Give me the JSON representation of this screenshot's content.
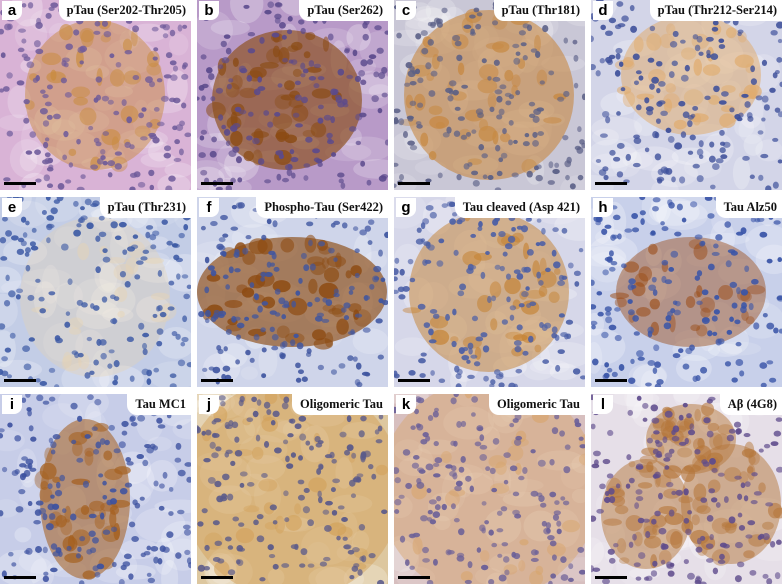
{
  "panels": [
    {
      "letter": "a",
      "title": "pTau (Ser202-Thr205)",
      "bg": "#d9b3d6",
      "cell": "#6e5a9a",
      "stain": "#c98a3a",
      "stainLevel": 0.5,
      "pattern": "islet-center"
    },
    {
      "letter": "b",
      "title": "pTau (Ser262)",
      "bg": "#b89ac8",
      "cell": "#5b4a8c",
      "stain": "#8a4a12",
      "stainLevel": 0.85,
      "pattern": "islet-ring"
    },
    {
      "letter": "c",
      "title": "pTau (Thr181)",
      "bg": "#c9c7d6",
      "cell": "#5a5f86",
      "stain": "#c78a45",
      "stainLevel": 0.8,
      "pattern": "islet-large"
    },
    {
      "letter": "d",
      "title": "pTau (Thr212-Ser214)",
      "bg": "#d3d5e8",
      "cell": "#3d4f9a",
      "stain": "#e0ab6c",
      "stainLevel": 0.6,
      "pattern": "islet-top"
    },
    {
      "letter": "e",
      "title": "pTau (Thr231)",
      "bg": "#c3cde6",
      "cell": "#3d5aa5",
      "stain": "#e8d3b0",
      "stainLevel": 0.2,
      "pattern": "islet-faint"
    },
    {
      "letter": "f",
      "title": "Phospho-Tau (Ser422)",
      "bg": "#cfd5ea",
      "cell": "#3f55a0",
      "stain": "#8d4b12",
      "stainLevel": 0.9,
      "pattern": "islet-band"
    },
    {
      "letter": "g",
      "title": "Tau cleaved (Asp 421)",
      "bg": "#d6d7e9",
      "cell": "#4a5ea6",
      "stain": "#c4802f",
      "stainLevel": 0.55,
      "pattern": "islet-scatter"
    },
    {
      "letter": "h",
      "title": "Tau Alz50",
      "bg": "#c8d0ea",
      "cell": "#3a55a8",
      "stain": "#9a4a14",
      "stainLevel": 0.45,
      "pattern": "islet-spots"
    },
    {
      "letter": "i",
      "title": "Tau MC1",
      "bg": "#c7cde8",
      "cell": "#3d52a0",
      "stain": "#a5601f",
      "stainLevel": 0.7,
      "pattern": "islet-diag"
    },
    {
      "letter": "j",
      "title": "Oligomeric Tau",
      "bg": "#ddc79f",
      "cell": "#5a5a8a",
      "stain": "#d2a058",
      "stainLevel": 0.5,
      "pattern": "diffuse"
    },
    {
      "letter": "k",
      "title": "Oligomeric Tau",
      "bg": "#d7bfbf",
      "cell": "#6a5f98",
      "stain": "#d8a46a",
      "stainLevel": 0.45,
      "pattern": "diffuse-pink"
    },
    {
      "letter": "l",
      "title": "Aβ (4G8)",
      "bg": "#e6dfe8",
      "cell": "#5f4c8c",
      "stain": "#b5763a",
      "stainLevel": 0.55,
      "pattern": "lobules"
    }
  ]
}
